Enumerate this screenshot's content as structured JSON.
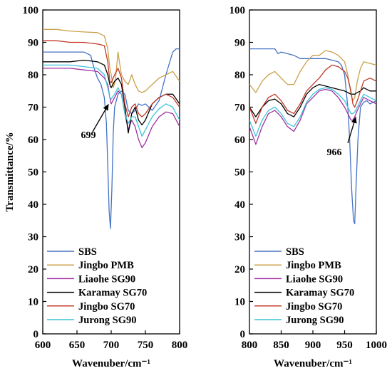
{
  "chart_data": [
    {
      "type": "line",
      "xlabel": "Wavenuber/cm⁻¹",
      "ylabel": "Transmittance/%",
      "xlim": [
        600,
        800
      ],
      "ylim": [
        0,
        100
      ],
      "xticks": [
        600,
        650,
        700,
        750,
        800
      ],
      "yticks": [
        0,
        10,
        20,
        30,
        40,
        50,
        60,
        70,
        80,
        90,
        100
      ],
      "grid": false,
      "legend_position": "bottom-left",
      "annotations": [
        {
          "text": "699",
          "x": 699,
          "y": 71
        }
      ],
      "series": [
        {
          "name": "SBS",
          "color": "#4472c4",
          "x": [
            600,
            620,
            640,
            660,
            670,
            675,
            680,
            685,
            690,
            693,
            695,
            697,
            699,
            701,
            703,
            705,
            710,
            715,
            720,
            725,
            730,
            735,
            740,
            745,
            750,
            760,
            770,
            780,
            790,
            795,
            800
          ],
          "y": [
            87,
            87,
            87,
            87,
            86,
            82,
            79,
            77,
            73,
            65,
            52,
            38,
            32.5,
            45,
            62,
            70,
            74,
            75,
            74,
            69,
            68,
            69,
            71,
            70.5,
            71,
            69,
            72,
            80,
            87,
            88,
            88
          ]
        },
        {
          "name": "Jingbo PMB",
          "color": "#c9a04a",
          "x": [
            600,
            620,
            640,
            660,
            680,
            690,
            695,
            698,
            700,
            703,
            706,
            710,
            712,
            715,
            720,
            725,
            730,
            735,
            740,
            745,
            750,
            755,
            760,
            770,
            780,
            790,
            800
          ],
          "y": [
            94,
            94,
            93.5,
            93.2,
            93,
            92,
            88,
            82,
            80,
            76,
            78,
            87,
            84,
            80,
            78,
            77,
            80,
            77,
            75,
            74.5,
            75,
            76,
            77,
            79,
            80,
            81,
            78
          ]
        },
        {
          "name": "Liaohe SG90",
          "color": "#a030a0",
          "x": [
            600,
            620,
            640,
            660,
            680,
            690,
            695,
            698,
            700,
            705,
            710,
            715,
            720,
            725,
            730,
            735,
            740,
            745,
            750,
            760,
            770,
            780,
            790,
            800
          ],
          "y": [
            82,
            82,
            82,
            81.5,
            81,
            79,
            77,
            73,
            71,
            73,
            75,
            74,
            68,
            63,
            66,
            64,
            60,
            57.5,
            59,
            64,
            67,
            68.5,
            68,
            64
          ]
        },
        {
          "name": "Karamay SG70",
          "color": "#000000",
          "x": [
            600,
            620,
            640,
            660,
            680,
            690,
            695,
            698,
            700,
            705,
            710,
            715,
            720,
            725,
            730,
            735,
            740,
            745,
            750,
            760,
            770,
            780,
            790,
            800
          ],
          "y": [
            84,
            84,
            84,
            84.5,
            84,
            83,
            80,
            77,
            76,
            78,
            79,
            77,
            70,
            62,
            68,
            70,
            66,
            64.5,
            66,
            71,
            73,
            74,
            74,
            71
          ]
        },
        {
          "name": "Jingbo SG70",
          "color": "#c0392b",
          "x": [
            600,
            620,
            640,
            660,
            680,
            690,
            695,
            698,
            700,
            705,
            710,
            715,
            720,
            725,
            730,
            735,
            740,
            745,
            750,
            760,
            770,
            780,
            790,
            800
          ],
          "y": [
            90.5,
            90.5,
            90,
            90,
            89.5,
            89,
            84,
            78,
            77.5,
            80,
            82,
            79,
            71,
            67,
            70,
            71,
            68,
            67,
            68,
            71,
            73,
            74,
            73,
            70
          ]
        },
        {
          "name": "Jurong SG90",
          "color": "#3cc4d8",
          "x": [
            600,
            620,
            640,
            660,
            680,
            690,
            695,
            698,
            700,
            705,
            710,
            715,
            720,
            725,
            730,
            735,
            740,
            745,
            750,
            760,
            770,
            780,
            790,
            800
          ],
          "y": [
            83,
            83,
            83,
            82.5,
            82,
            80,
            76,
            73,
            72.5,
            74,
            76,
            74,
            68,
            65,
            67,
            67,
            64,
            61,
            63,
            67,
            69.5,
            71,
            70,
            66
          ]
        }
      ]
    },
    {
      "type": "line",
      "xlabel": "Wavenuber/cm⁻¹",
      "ylabel": "",
      "xlim": [
        800,
        1000
      ],
      "ylim": [
        0,
        100
      ],
      "xticks": [
        800,
        850,
        900,
        950,
        1000
      ],
      "yticks": [
        0,
        10,
        20,
        30,
        40,
        50,
        60,
        70,
        80,
        90,
        100
      ],
      "grid": false,
      "legend_position": "bottom-left",
      "annotations": [
        {
          "text": "966",
          "x": 966,
          "y": 67
        }
      ],
      "series": [
        {
          "name": "SBS",
          "color": "#4472c4",
          "x": [
            800,
            820,
            840,
            845,
            850,
            860,
            870,
            880,
            890,
            900,
            910,
            920,
            930,
            940,
            945,
            950,
            955,
            958,
            961,
            964,
            966,
            968,
            971,
            975,
            980,
            985,
            990,
            1000
          ],
          "y": [
            88,
            88,
            88,
            86.5,
            87,
            86.5,
            86,
            85,
            85,
            85,
            85,
            85,
            84.5,
            84,
            83,
            80,
            70,
            60,
            45,
            35,
            34,
            45,
            60,
            70,
            71.5,
            72,
            71,
            72
          ]
        },
        {
          "name": "Jingbo PMB",
          "color": "#c9a04a",
          "x": [
            800,
            810,
            820,
            830,
            840,
            850,
            860,
            870,
            880,
            890,
            900,
            910,
            920,
            930,
            940,
            950,
            955,
            960,
            963,
            966,
            970,
            975,
            980,
            990,
            1000
          ],
          "y": [
            77,
            74.5,
            78,
            80,
            81,
            79,
            77,
            77,
            81,
            84,
            86,
            86,
            87.5,
            87,
            86,
            84,
            80,
            74,
            72,
            73,
            78,
            82,
            84,
            83.5,
            83
          ]
        },
        {
          "name": "Liaohe SG90",
          "color": "#a030a0",
          "x": [
            800,
            810,
            820,
            830,
            840,
            850,
            860,
            870,
            880,
            890,
            900,
            910,
            920,
            930,
            940,
            950,
            955,
            960,
            963,
            966,
            970,
            975,
            980,
            990,
            1000
          ],
          "y": [
            64,
            58.5,
            64,
            68,
            69,
            67,
            64,
            62.5,
            66,
            71,
            73,
            75,
            75.5,
            75,
            73,
            70,
            68,
            66,
            66,
            67,
            69,
            71,
            73,
            72,
            71
          ]
        },
        {
          "name": "Karamay SG70",
          "color": "#000000",
          "x": [
            800,
            810,
            820,
            830,
            840,
            850,
            860,
            870,
            880,
            890,
            900,
            910,
            920,
            930,
            940,
            950,
            955,
            960,
            963,
            966,
            970,
            975,
            980,
            990,
            1000
          ],
          "y": [
            70,
            67,
            70,
            72,
            72.5,
            71,
            68,
            67,
            70,
            74,
            76,
            77,
            76.5,
            76,
            75.5,
            75,
            74.5,
            74,
            74,
            74,
            74.5,
            75,
            76,
            75,
            75
          ]
        },
        {
          "name": "Jingbo SG70",
          "color": "#c0392b",
          "x": [
            800,
            810,
            820,
            830,
            840,
            850,
            860,
            870,
            880,
            890,
            900,
            910,
            920,
            930,
            940,
            950,
            955,
            960,
            963,
            966,
            970,
            975,
            980,
            990,
            1000
          ],
          "y": [
            70,
            65,
            70,
            73,
            74,
            72,
            69,
            68,
            71,
            75,
            77,
            79,
            81.5,
            83,
            82.5,
            81,
            79,
            75,
            71,
            70,
            72,
            75,
            78,
            79,
            78
          ]
        },
        {
          "name": "Jurong SG90",
          "color": "#3cc4d8",
          "x": [
            800,
            810,
            820,
            830,
            840,
            850,
            860,
            870,
            880,
            890,
            900,
            910,
            920,
            930,
            940,
            950,
            955,
            960,
            963,
            966,
            970,
            975,
            980,
            990,
            1000
          ],
          "y": [
            66,
            61,
            66,
            69,
            70,
            68,
            65,
            64,
            67,
            71.5,
            74,
            75.5,
            76,
            75.5,
            74,
            72,
            70,
            68,
            68,
            68.5,
            70,
            72,
            74,
            73,
            72
          ]
        }
      ]
    }
  ]
}
